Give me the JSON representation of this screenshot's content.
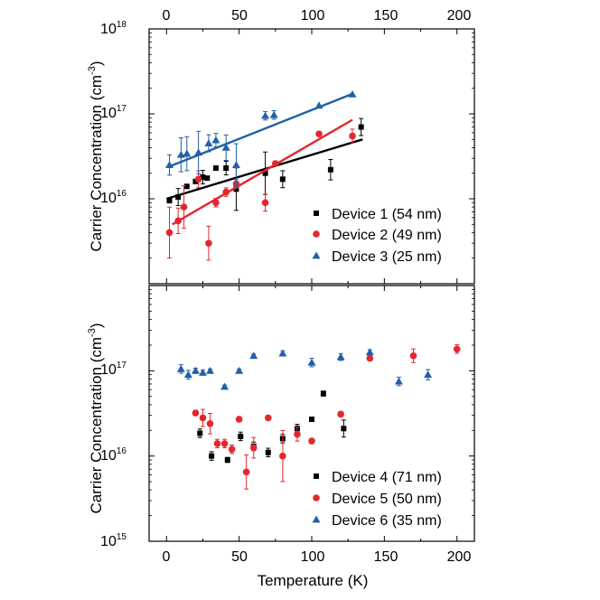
{
  "chart_data": [
    {
      "type": "scatter",
      "panel": "top",
      "title": "",
      "xlabel": "Temperature (K)",
      "ylabel_main": "Carrier Concentration (cm",
      "ylabel_sup": "-3",
      "ylabel_close": ")",
      "xlim": [
        -12,
        212
      ],
      "ylim_log10": [
        15,
        18
      ],
      "x_ticks": [
        0,
        50,
        100,
        150,
        200
      ],
      "x_tick_labels": [
        "0",
        "50",
        "100",
        "150",
        "200"
      ],
      "y_ticks_log10": [
        16,
        17,
        18
      ],
      "y_tick_labels": [
        {
          "base": "10",
          "exp": "16"
        },
        {
          "base": "10",
          "exp": "17"
        },
        {
          "base": "10",
          "exp": "18"
        }
      ],
      "legend_position": "bottom-right",
      "series": [
        {
          "name": "Device 1 (54 nm)",
          "marker": "square",
          "color": "#000000",
          "x": [
            2,
            8,
            14,
            20,
            25,
            28,
            34,
            41,
            48,
            68,
            80,
            113,
            134
          ],
          "y": [
            9500000000000000.0,
            1.05e+16,
            1.4e+16,
            1.6e+16,
            1.8e+16,
            1.75e+16,
            2.3e+16,
            2.3e+16,
            1.3e+16,
            2e+16,
            1.7e+16,
            2.2e+16,
            7e+16
          ],
          "err": [
            0.0,
            0.1,
            0.0,
            0.0,
            0.08,
            0.0,
            0.0,
            0.08,
            0.25,
            0.25,
            0.1,
            0.12,
            0.1
          ],
          "fit": {
            "x": [
              0,
              135
            ],
            "y": [
              1e+16,
              5e+16
            ]
          }
        },
        {
          "name": "Device 2 (49 nm)",
          "marker": "circle",
          "color": "#e3272e",
          "x": [
            2,
            8,
            12,
            22,
            29,
            34,
            41,
            48,
            68,
            75,
            105,
            128
          ],
          "y": [
            4000000000000000.0,
            5500000000000000.0,
            8000000000000000.0,
            1.7e+16,
            3000000000000000.0,
            9000000000000000.0,
            1.2e+16,
            1.5e+16,
            9000000000000000.0,
            2.6e+16,
            5.8e+16,
            5.5e+16
          ],
          "err": [
            0.3,
            0.15,
            0.25,
            0.1,
            0.2,
            0.05,
            0.05,
            0.05,
            0.1,
            0.0,
            0.0,
            0.08
          ],
          "fit": {
            "x": [
              4,
              128
            ],
            "y": [
              5000000000000000.0,
              8.5e+16
            ]
          }
        },
        {
          "name": "Device 3 (25 nm)",
          "marker": "triangle",
          "color": "#2060a8",
          "x": [
            2,
            10,
            14,
            22,
            29,
            34,
            41,
            48,
            68,
            74,
            105,
            128
          ],
          "y": [
            2.5e+16,
            3.3e+16,
            3.4e+16,
            3.5e+16,
            4.5e+16,
            4.9e+16,
            4e+16,
            2.5e+16,
            9.5e+16,
            9.7e+16,
            1.25e+17,
            1.7e+17
          ],
          "err": [
            0.12,
            0.2,
            0.2,
            0.25,
            0.1,
            0.08,
            0.15,
            0.25,
            0.05,
            0.05,
            0.0,
            0.0
          ],
          "fit": {
            "x": [
              2,
              128
            ],
            "y": [
              2.4e+16,
              1.72e+17
            ]
          }
        }
      ]
    },
    {
      "type": "scatter",
      "panel": "bottom",
      "title": "",
      "xlabel": "Temperature (K)",
      "ylabel_main": "Carrier Concentration (cm",
      "ylabel_sup": "-3",
      "ylabel_close": ")",
      "xlim": [
        -12,
        212
      ],
      "ylim_log10": [
        15,
        18
      ],
      "x_ticks": [
        0,
        50,
        100,
        150,
        200
      ],
      "x_tick_labels": [
        "0",
        "50",
        "100",
        "150",
        "200"
      ],
      "y_ticks_log10": [
        15,
        16,
        17
      ],
      "y_tick_labels": [
        {
          "base": "10",
          "exp": "15"
        },
        {
          "base": "10",
          "exp": "16"
        },
        {
          "base": "10",
          "exp": "17"
        }
      ],
      "legend_position": "bottom-right",
      "series": [
        {
          "name": "Device 4 (71 nm)",
          "marker": "square",
          "color": "#000000",
          "x": [
            23,
            31,
            42,
            51,
            60,
            70,
            80,
            90,
            100,
            108,
            122
          ],
          "y": [
            1.85e+16,
            1e+16,
            9000000000000000.0,
            1.7e+16,
            1.3e+16,
            1.1e+16,
            1.6e+16,
            2.1e+16,
            2.7e+16,
            5.4e+16,
            2.1e+16
          ],
          "err": [
            0.05,
            0.05,
            0.03,
            0.05,
            0.05,
            0.05,
            0.05,
            0.05,
            0.0,
            0.03,
            0.1
          ],
          "fit": null
        },
        {
          "name": "Device 5 (50 nm)",
          "marker": "circle",
          "color": "#e3272e",
          "x": [
            20,
            25,
            30,
            35,
            40,
            45,
            50,
            55,
            60,
            70,
            80,
            90,
            100,
            120,
            140,
            170,
            200
          ],
          "y": [
            3.2e+16,
            2.8e+16,
            2.4e+16,
            1.4e+16,
            1.4e+16,
            1.2e+16,
            2.7e+16,
            6500000000000000.0,
            1.25e+16,
            2.8e+16,
            1e+16,
            1.8e+16,
            1.5e+16,
            3.1e+16,
            1.4e+17,
            1.5e+17,
            1.8e+17
          ],
          "err": [
            0.03,
            0.1,
            0.12,
            0.05,
            0.05,
            0.05,
            0.03,
            0.2,
            0.12,
            0.0,
            0.3,
            0.08,
            0.03,
            0.03,
            0.0,
            0.08,
            0.05
          ],
          "fit": null
        },
        {
          "name": "Device 6 (35 nm)",
          "marker": "triangle",
          "color": "#2060a8",
          "x": [
            10,
            15,
            20,
            25,
            30,
            40,
            50,
            60,
            80,
            100,
            120,
            140,
            160,
            180
          ],
          "y": [
            1.05e+17,
            9e+16,
            1e+17,
            9.5e+16,
            1e+17,
            6.5e+16,
            1e+17,
            1.5e+17,
            1.6e+17,
            1.25e+17,
            1.45e+17,
            1.65e+17,
            7.5e+16,
            9e+16
          ],
          "err": [
            0.05,
            0.05,
            0.03,
            0.03,
            0.02,
            0.02,
            0.02,
            0.02,
            0.03,
            0.05,
            0.04,
            0.03,
            0.05,
            0.06
          ],
          "fit": null
        }
      ]
    }
  ]
}
